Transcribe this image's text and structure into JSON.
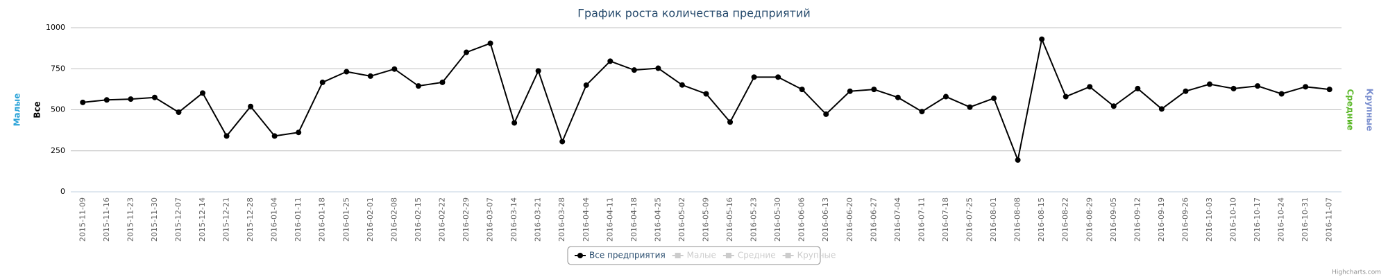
{
  "chart_data": {
    "type": "line",
    "title": "График роста количества предприятий",
    "categories": [
      "2015-11-09",
      "2015-11-16",
      "2015-11-23",
      "2015-11-30",
      "2015-12-07",
      "2015-12-14",
      "2015-12-21",
      "2015-12-28",
      "2016-01-04",
      "2016-01-11",
      "2016-01-18",
      "2016-01-25",
      "2016-02-01",
      "2016-02-08",
      "2016-02-15",
      "2016-02-22",
      "2016-02-29",
      "2016-03-07",
      "2016-03-14",
      "2016-03-21",
      "2016-03-28",
      "2016-04-04",
      "2016-04-11",
      "2016-04-18",
      "2016-04-25",
      "2016-05-02",
      "2016-05-09",
      "2016-05-16",
      "2016-05-23",
      "2016-05-30",
      "2016-06-06",
      "2016-06-13",
      "2016-06-20",
      "2016-06-27",
      "2016-07-04",
      "2016-07-11",
      "2016-07-18",
      "2016-07-25",
      "2016-08-01",
      "2016-08-08",
      "2016-08-15",
      "2016-08-22",
      "2016-08-29",
      "2016-09-05",
      "2016-09-12",
      "2016-09-19",
      "2016-09-26",
      "2016-10-03",
      "2016-10-10",
      "2016-10-17",
      "2016-10-24",
      "2016-10-31",
      "2016-11-07"
    ],
    "series": [
      {
        "name": "Все предприятия",
        "color": "#000000",
        "values": [
          545,
          560,
          565,
          575,
          485,
          602,
          340,
          520,
          340,
          362,
          667,
          732,
          705,
          748,
          645,
          667,
          850,
          905,
          420,
          737,
          306,
          650,
          796,
          742,
          753,
          651,
          597,
          425,
          699,
          699,
          624,
          473,
          613,
          624,
          575,
          489,
          580,
          516,
          570,
          194,
          930,
          580,
          640,
          522,
          629,
          505,
          613,
          656,
          629,
          645,
          597,
          640,
          624
        ]
      }
    ],
    "hidden_series": [
      {
        "name": "Малые",
        "color": "#cccccc"
      },
      {
        "name": "Средние",
        "color": "#cccccc"
      },
      {
        "name": "Крупные",
        "color": "#cccccc"
      }
    ],
    "y_axis_titles_left": [
      {
        "text": "Малые",
        "color": "#2ba3d8"
      },
      {
        "text": "Все",
        "color": "#000000"
      }
    ],
    "y_axis_titles_right": [
      {
        "text": "Средние",
        "color": "#5cb82a"
      },
      {
        "text": "Крупные",
        "color": "#7b8fcf"
      }
    ],
    "ylim": [
      0,
      1000
    ],
    "yticks": [
      0,
      250,
      500,
      750,
      1000
    ],
    "grid": true,
    "credits": "Highcharts.com"
  }
}
